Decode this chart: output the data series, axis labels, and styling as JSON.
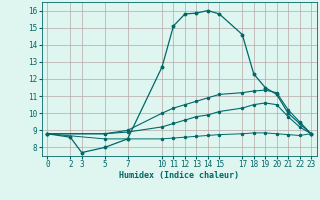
{
  "title": "",
  "xlabel": "Humidex (Indice chaleur)",
  "background_color": "#dff5f0",
  "plot_bg_color": "#dff5f0",
  "grid_color": "#b8a8a8",
  "line_color": "#006868",
  "xlim": [
    -0.5,
    23.5
  ],
  "ylim": [
    7.5,
    16.5
  ],
  "yticks": [
    8,
    9,
    10,
    11,
    12,
    13,
    14,
    15,
    16
  ],
  "xticks": [
    0,
    2,
    3,
    5,
    7,
    10,
    11,
    12,
    13,
    14,
    15,
    17,
    18,
    19,
    20,
    21,
    22,
    23
  ],
  "series": [
    {
      "x": [
        0,
        2,
        3,
        5,
        7,
        10,
        11,
        12,
        13,
        14,
        15,
        17,
        18,
        19,
        20,
        21,
        22,
        23
      ],
      "y": [
        8.8,
        8.6,
        7.7,
        8.0,
        8.5,
        12.7,
        15.1,
        15.8,
        15.85,
        16.0,
        15.8,
        14.6,
        12.3,
        11.5,
        11.1,
        10.0,
        9.4,
        8.8
      ]
    },
    {
      "x": [
        0,
        5,
        7,
        10,
        11,
        12,
        13,
        14,
        15,
        17,
        18,
        19,
        20,
        21,
        22,
        23
      ],
      "y": [
        8.8,
        8.8,
        9.0,
        10.0,
        10.3,
        10.5,
        10.7,
        10.9,
        11.1,
        11.2,
        11.3,
        11.35,
        11.2,
        10.2,
        9.5,
        8.8
      ]
    },
    {
      "x": [
        0,
        5,
        7,
        10,
        11,
        12,
        13,
        14,
        15,
        17,
        18,
        19,
        20,
        21,
        22,
        23
      ],
      "y": [
        8.8,
        8.8,
        8.9,
        9.2,
        9.4,
        9.6,
        9.8,
        9.9,
        10.1,
        10.3,
        10.5,
        10.6,
        10.5,
        9.8,
        9.2,
        8.8
      ]
    },
    {
      "x": [
        0,
        5,
        7,
        10,
        11,
        12,
        13,
        14,
        15,
        17,
        18,
        19,
        20,
        21,
        22,
        23
      ],
      "y": [
        8.8,
        8.5,
        8.5,
        8.5,
        8.55,
        8.6,
        8.65,
        8.7,
        8.75,
        8.8,
        8.85,
        8.85,
        8.8,
        8.75,
        8.7,
        8.8
      ]
    }
  ]
}
